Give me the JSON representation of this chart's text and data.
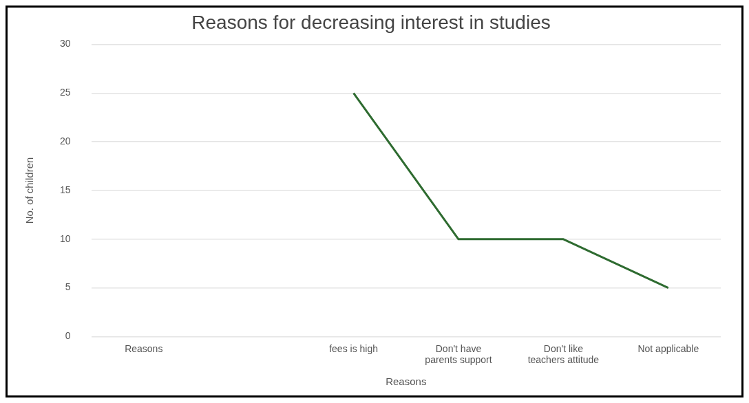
{
  "chart_data": {
    "type": "line",
    "title": "Reasons for decreasing interest in studies",
    "xlabel": "Reasons",
    "ylabel": "No. of children",
    "categories": [
      "Reasons",
      null,
      "fees is high",
      "Don't have parents support",
      "Don't like teachers attitude",
      "Not applicable"
    ],
    "series": [
      {
        "color": "#2e6b30",
        "values": [
          null,
          null,
          25,
          10,
          10,
          5
        ]
      }
    ],
    "ylim": [
      0,
      30
    ],
    "yticks": [
      0,
      5,
      10,
      15,
      20,
      25,
      30
    ],
    "grid": "y",
    "legend": false,
    "marker": "none",
    "line_style": "solid"
  }
}
